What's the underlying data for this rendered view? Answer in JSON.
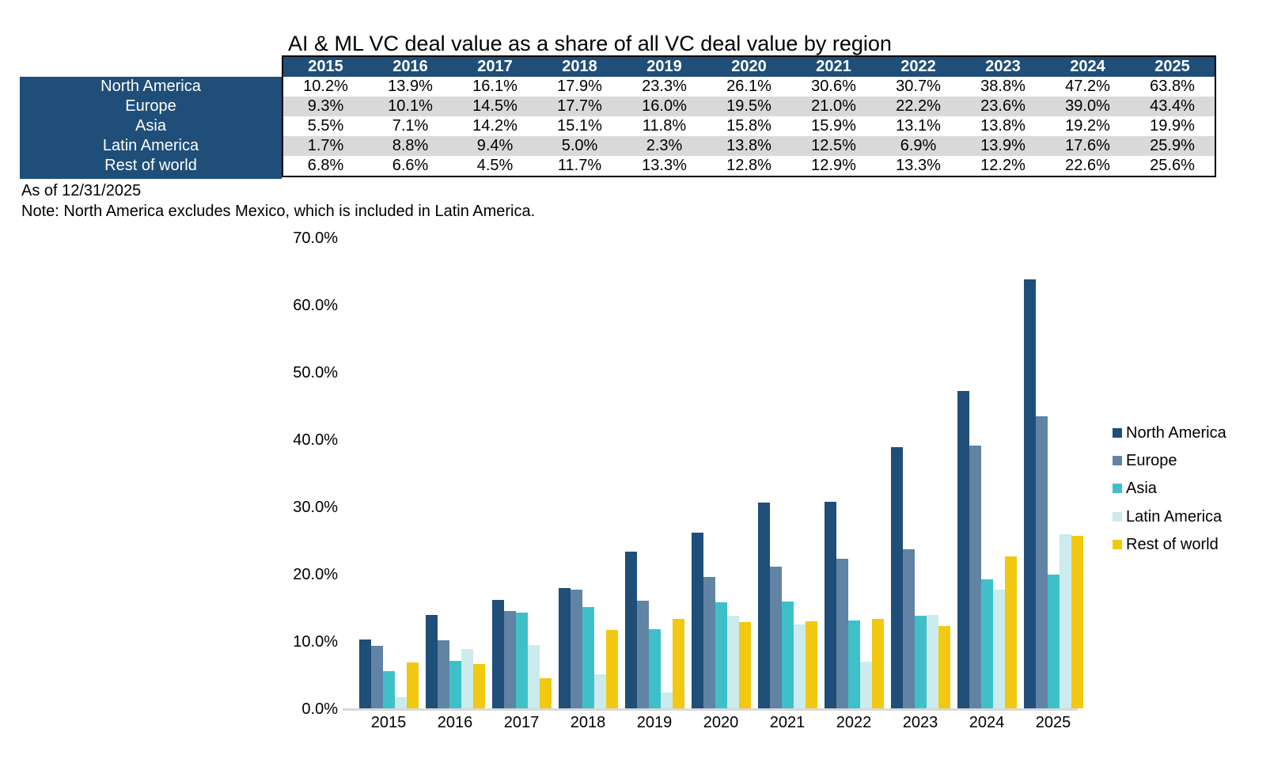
{
  "title": "AI & ML VC deal value as a share of all VC deal value by region",
  "footnotes": {
    "as_of": "As of 12/31/2025",
    "note": "Note: North America excludes Mexico, which is included in Latin America."
  },
  "colors": {
    "header_blue": "#1F4E79",
    "row_alt_gray": "#D9D9D9",
    "axis_line_gray": "#D9D9D9",
    "north_america": "#1F4E79",
    "europe": "#6183A4",
    "asia": "#3FC0C9",
    "latin_america": "#CBEBEC",
    "rest_of_world": "#F2C811"
  },
  "table": {
    "years": [
      "2015",
      "2016",
      "2017",
      "2018",
      "2019",
      "2020",
      "2021",
      "2022",
      "2023",
      "2024",
      "2025"
    ],
    "rows": [
      {
        "label": "North America",
        "values": [
          "10.2%",
          "13.9%",
          "16.1%",
          "17.9%",
          "23.3%",
          "26.1%",
          "30.6%",
          "30.7%",
          "38.8%",
          "47.2%",
          "63.8%"
        ]
      },
      {
        "label": "Europe",
        "values": [
          "9.3%",
          "10.1%",
          "14.5%",
          "17.7%",
          "16.0%",
          "19.5%",
          "21.0%",
          "22.2%",
          "23.6%",
          "39.0%",
          "43.4%"
        ]
      },
      {
        "label": "Asia",
        "values": [
          "5.5%",
          "7.1%",
          "14.2%",
          "15.1%",
          "11.8%",
          "15.8%",
          "15.9%",
          "13.1%",
          "13.8%",
          "19.2%",
          "19.9%"
        ]
      },
      {
        "label": "Latin America",
        "values": [
          "1.7%",
          "8.8%",
          "9.4%",
          "5.0%",
          "2.3%",
          "13.8%",
          "12.5%",
          "6.9%",
          "13.9%",
          "17.6%",
          "25.9%"
        ]
      },
      {
        "label": "Rest of world",
        "values": [
          "6.8%",
          "6.6%",
          "4.5%",
          "11.7%",
          "13.3%",
          "12.8%",
          "12.9%",
          "13.3%",
          "12.2%",
          "22.6%",
          "25.6%"
        ]
      }
    ]
  },
  "chart_data": {
    "type": "bar",
    "title": "AI & ML VC deal value as a share of all VC deal value by region",
    "categories": [
      "2015",
      "2016",
      "2017",
      "2018",
      "2019",
      "2020",
      "2021",
      "2022",
      "2023",
      "2024",
      "2025"
    ],
    "series": [
      {
        "name": "North America",
        "color": "#1F4E79",
        "values": [
          10.2,
          13.9,
          16.1,
          17.9,
          23.3,
          26.1,
          30.6,
          30.7,
          38.8,
          47.2,
          63.8
        ]
      },
      {
        "name": "Europe",
        "color": "#6183A4",
        "values": [
          9.3,
          10.1,
          14.5,
          17.7,
          16.0,
          19.5,
          21.0,
          22.2,
          23.6,
          39.0,
          43.4
        ]
      },
      {
        "name": "Asia",
        "color": "#3FC0C9",
        "values": [
          5.5,
          7.1,
          14.2,
          15.1,
          11.8,
          15.8,
          15.9,
          13.1,
          13.8,
          19.2,
          19.9
        ]
      },
      {
        "name": "Latin America",
        "color": "#CBEBEC",
        "values": [
          1.7,
          8.8,
          9.4,
          5.0,
          2.3,
          13.8,
          12.5,
          6.9,
          13.9,
          17.6,
          25.9
        ]
      },
      {
        "name": "Rest of world",
        "color": "#F2C811",
        "values": [
          6.8,
          6.6,
          4.5,
          11.7,
          13.3,
          12.8,
          12.9,
          13.3,
          12.2,
          22.6,
          25.6
        ]
      }
    ],
    "xlabel": "",
    "ylabel": "",
    "ylim": [
      0,
      70
    ],
    "y_ticks": [
      "70.0%",
      "60.0%",
      "50.0%",
      "40.0%",
      "30.0%",
      "20.0%",
      "10.0%",
      "0.0%"
    ],
    "grid": false,
    "legend_position": "right"
  }
}
